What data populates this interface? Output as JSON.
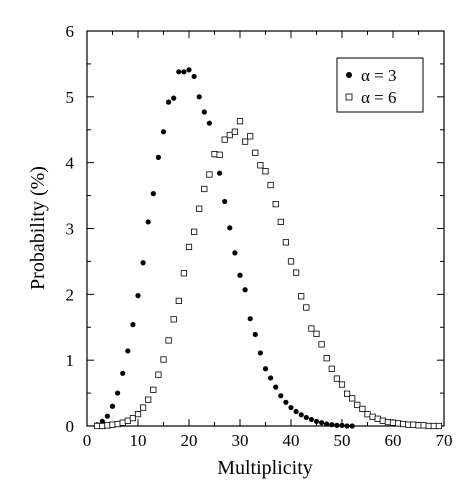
{
  "chart_data": {
    "type": "scatter",
    "title": "",
    "xlabel": "Multiplicity",
    "ylabel": "Probability (%)",
    "xlim": [
      0,
      70
    ],
    "ylim": [
      0,
      6
    ],
    "x_ticks": [
      "0",
      "10",
      "20",
      "30",
      "40",
      "50",
      "60",
      "70"
    ],
    "y_ticks": [
      "0",
      "1",
      "2",
      "3",
      "4",
      "5",
      "6"
    ],
    "grid": false,
    "legend_position": "top-right",
    "series": [
      {
        "name": "α = 3",
        "marker": "filled-circle",
        "x": [
          2,
          3,
          4,
          5,
          6,
          7,
          8,
          9,
          10,
          11,
          12,
          13,
          14,
          15,
          16,
          17,
          18,
          19,
          20,
          21,
          22,
          23,
          24,
          25,
          26,
          27,
          28,
          29,
          30,
          31,
          32,
          33,
          34,
          35,
          36,
          37,
          38,
          39,
          40,
          41,
          42,
          43,
          44,
          45,
          46,
          47,
          48,
          49,
          50,
          51,
          52
        ],
        "y": [
          0.02,
          0.07,
          0.15,
          0.3,
          0.5,
          0.8,
          1.14,
          1.54,
          1.98,
          2.48,
          3.1,
          3.53,
          4.08,
          4.47,
          4.92,
          4.98,
          5.38,
          5.38,
          5.41,
          5.31,
          5.0,
          4.77,
          4.6,
          4.12,
          3.84,
          3.41,
          3.01,
          2.63,
          2.29,
          2.07,
          1.63,
          1.39,
          1.11,
          0.87,
          0.73,
          0.59,
          0.46,
          0.36,
          0.28,
          0.22,
          0.17,
          0.13,
          0.1,
          0.07,
          0.05,
          0.03,
          0.02,
          0.01,
          0.01,
          0.0,
          0.0
        ]
      },
      {
        "name": "α = 6",
        "marker": "open-square",
        "x": [
          2,
          3,
          4,
          5,
          6,
          7,
          8,
          9,
          10,
          11,
          12,
          13,
          14,
          15,
          16,
          17,
          18,
          19,
          20,
          21,
          22,
          23,
          24,
          25,
          26,
          27,
          28,
          29,
          30,
          31,
          32,
          33,
          34,
          35,
          36,
          37,
          38,
          39,
          40,
          41,
          42,
          43,
          44,
          45,
          46,
          47,
          48,
          49,
          50,
          51,
          52,
          53,
          54,
          55,
          56,
          57,
          58,
          59,
          60,
          61,
          62,
          63,
          64,
          65,
          66,
          67,
          68,
          69
        ],
        "y": [
          0.0,
          0.0,
          0.01,
          0.02,
          0.03,
          0.05,
          0.08,
          0.12,
          0.18,
          0.28,
          0.4,
          0.55,
          0.78,
          1.01,
          1.3,
          1.62,
          1.9,
          2.32,
          2.72,
          2.95,
          3.3,
          3.6,
          3.82,
          4.13,
          4.12,
          4.35,
          4.42,
          4.47,
          4.63,
          4.32,
          4.4,
          4.15,
          3.96,
          3.87,
          3.66,
          3.37,
          3.1,
          2.79,
          2.5,
          2.33,
          1.97,
          1.8,
          1.48,
          1.4,
          1.24,
          1.03,
          0.87,
          0.72,
          0.63,
          0.49,
          0.42,
          0.32,
          0.26,
          0.18,
          0.14,
          0.11,
          0.08,
          0.06,
          0.05,
          0.04,
          0.03,
          0.02,
          0.02,
          0.01,
          0.01,
          0.0,
          0.0,
          0.0
        ]
      }
    ]
  }
}
